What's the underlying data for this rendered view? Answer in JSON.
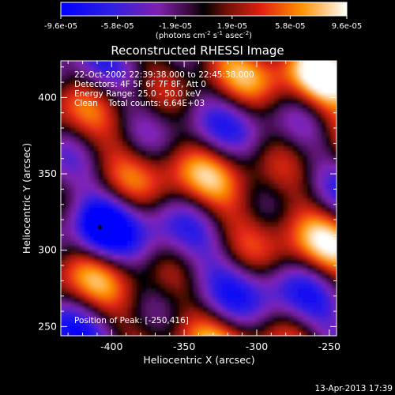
{
  "chart_data": {
    "type": "heatmap",
    "title": "Reconstructed RHESSI Image",
    "xlabel": "Heliocentric X (arcsec)",
    "ylabel": "Heliocentric Y (arcsec)",
    "xlim": [
      -435,
      -245
    ],
    "ylim": [
      244,
      424
    ],
    "x_ticks": [
      -400,
      -350,
      -300,
      -250
    ],
    "y_ticks": [
      250,
      300,
      350,
      400
    ],
    "colorbar": {
      "min": -9.6e-05,
      "max": 9.6e-05,
      "tick_values": [
        -9.6e-05,
        -5.8e-05,
        -1.9e-05,
        1.9e-05,
        5.8e-05,
        9.6e-05
      ],
      "tick_labels": [
        "-9.6e-05",
        "-5.8e-05",
        "-1.9e-05",
        "1.9e-05",
        "5.8e-05",
        "9.6e-05"
      ],
      "unit_label": "(photons cm",
      "unit_exp1": "-2",
      "unit_mid": " s",
      "unit_exp2": "-1",
      "unit_mid2": " asec",
      "unit_exp3": "-2",
      "unit_end": ")"
    },
    "annotations": [
      "22-Oct-2002 22:39:38.000 to 22:45:38.000",
      "Detectors: 4F 5F 6F 7F 8F, Att 0",
      "Energy Range: 25.0 - 50.0 keV",
      "Clean    Total counts: 6.64E+03"
    ],
    "peak_label": "Position of Peak: [-250,416]",
    "peak": {
      "x": -250,
      "y": 416
    },
    "min_marker": {
      "x": -408,
      "y": 315
    },
    "colors": {
      "negative_low": "#1020f0",
      "negative_mid": "#7020c0",
      "zero": "#000000",
      "positive_mid": "#e03020",
      "positive_high": "#ffb000",
      "max": "#ffffff"
    }
  },
  "footer": {
    "date": "13-Apr-2013 17:39"
  }
}
